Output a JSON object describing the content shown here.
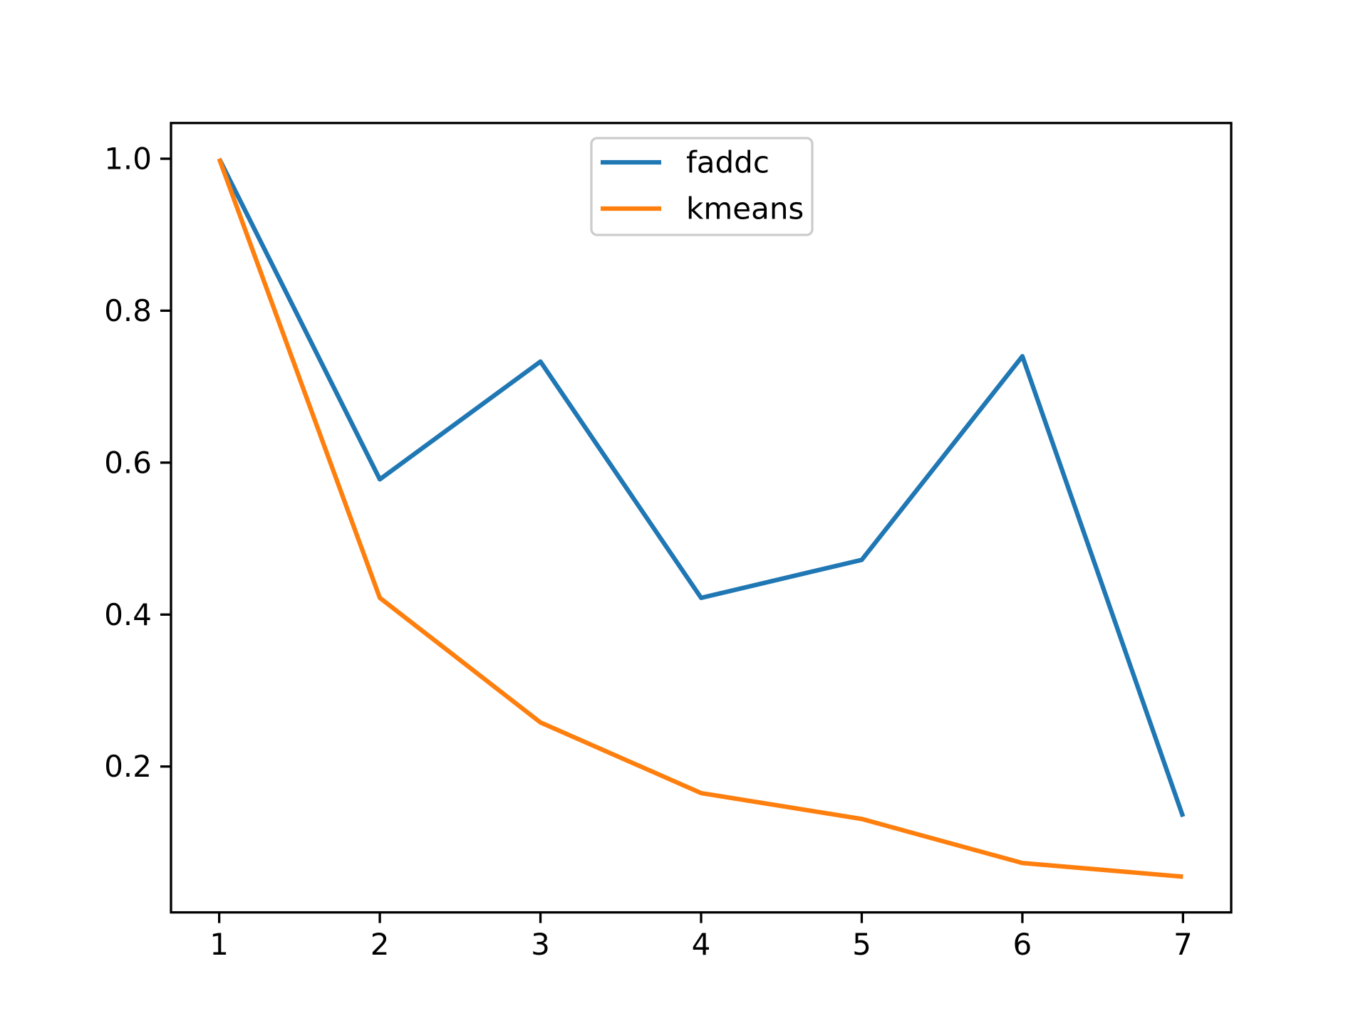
{
  "chart_data": {
    "type": "line",
    "title": "",
    "xlabel": "",
    "ylabel": "",
    "x": [
      1,
      2,
      3,
      4,
      5,
      6,
      7
    ],
    "series": [
      {
        "name": "faddc",
        "color": "#1f77b4",
        "values": [
          1.0,
          0.578,
          0.733,
          0.422,
          0.472,
          0.74,
          0.134
        ]
      },
      {
        "name": "kmeans",
        "color": "#ff7f0e",
        "values": [
          1.0,
          0.422,
          0.258,
          0.165,
          0.131,
          0.073,
          0.055
        ]
      }
    ],
    "xlim": [
      0.7,
      7.3
    ],
    "ylim": [
      0.008,
      1.047
    ],
    "xtick_values": [
      1,
      2,
      3,
      4,
      5,
      6,
      7
    ],
    "xticks": [
      "1",
      "2",
      "3",
      "4",
      "5",
      "6",
      "7"
    ],
    "ytick_values": [
      0.2,
      0.4,
      0.6,
      0.8,
      1.0
    ],
    "yticks": [
      "0.2",
      "0.4",
      "0.6",
      "0.8",
      "1.0"
    ],
    "grid": false,
    "legend_position": "upper center",
    "background_color": "#ffffff",
    "spine_color": "#000000",
    "legend_border_color": "#cccccc"
  }
}
